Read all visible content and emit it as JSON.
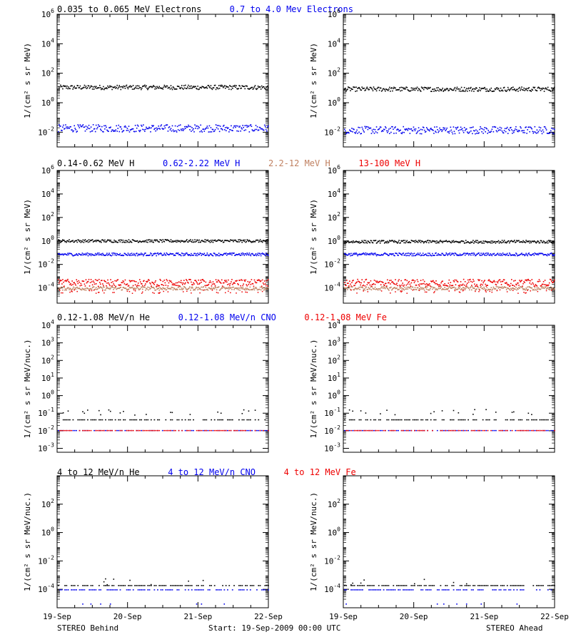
{
  "colors": {
    "black": "#000000",
    "blue": "#0000ee",
    "red": "#ee0000",
    "tan": "#c08060"
  },
  "footer": {
    "left": "STEREO Behind",
    "center": "Start: 19-Sep-2009 00:00 UTC",
    "right": "STEREO Ahead"
  },
  "chart_data": [
    {
      "type": "scatter",
      "panel_row": 1,
      "headers": [
        {
          "text": "0.035 to 0.065 MeV Electrons",
          "color": "black"
        },
        {
          "text": "0.7 to 4.0 Mev Electrons",
          "color": "blue"
        }
      ],
      "ylabel": "1/(cm² s sr MeV)",
      "yscale": "log",
      "ylim": [
        0.001,
        1000000
      ],
      "yticks": [
        {
          "label_base": "10",
          "label_exp": "6"
        },
        {
          "label_base": "10",
          "label_exp": "4"
        },
        {
          "label_base": "10",
          "label_exp": "2"
        },
        {
          "label_base": "10",
          "label_exp": "0"
        },
        {
          "label_base": "10",
          "label_exp": "-2"
        }
      ],
      "ytick_values": [
        1000000,
        10000,
        100,
        1,
        0.01
      ],
      "xticks": [
        "19-Sep",
        "20-Sep",
        "21-Sep",
        "22-Sep"
      ],
      "xlim": [
        0,
        3
      ],
      "spacecraft": [
        "STEREO Behind",
        "STEREO Ahead"
      ],
      "series": [
        {
          "color": "black",
          "behind": {
            "level": 12,
            "spread": 0.15
          },
          "ahead": {
            "level": 9,
            "spread": 0.15
          }
        },
        {
          "color": "blue",
          "behind": {
            "level": 0.02,
            "spread": 0.25
          },
          "ahead": {
            "level": 0.015,
            "spread": 0.25
          }
        }
      ]
    },
    {
      "type": "scatter",
      "panel_row": 2,
      "headers": [
        {
          "text": "0.14-0.62 MeV H",
          "color": "black"
        },
        {
          "text": "0.62-2.22 MeV H",
          "color": "blue"
        },
        {
          "text": "2.2-12 MeV H",
          "color": "tan"
        },
        {
          "text": "13-100 MeV H",
          "color": "red"
        }
      ],
      "ylabel": "1/(cm² s sr MeV)",
      "yscale": "log",
      "ylim": [
        5e-06,
        1000000
      ],
      "yticks": [
        {
          "label_base": "10",
          "label_exp": "6"
        },
        {
          "label_base": "10",
          "label_exp": "4"
        },
        {
          "label_base": "10",
          "label_exp": "2"
        },
        {
          "label_base": "10",
          "label_exp": "0"
        },
        {
          "label_base": "10",
          "label_exp": "-2"
        },
        {
          "label_base": "10",
          "label_exp": "-4"
        }
      ],
      "ytick_values": [
        1000000,
        10000,
        100,
        1,
        0.01,
        0.0001
      ],
      "xticks": [
        "19-Sep",
        "20-Sep",
        "21-Sep",
        "22-Sep"
      ],
      "xlim": [
        0,
        3
      ],
      "series": [
        {
          "color": "black",
          "behind": {
            "level": 1.1,
            "spread": 0.12
          },
          "ahead": {
            "level": 0.95,
            "spread": 0.12
          }
        },
        {
          "color": "blue",
          "behind": {
            "level": 0.08,
            "spread": 0.12
          },
          "ahead": {
            "level": 0.08,
            "spread": 0.12
          }
        },
        {
          "color": "tan",
          "behind": {
            "level": 0.0001,
            "spread": 0.15
          },
          "ahead": {
            "level": 0.0001,
            "spread": 0.15
          }
        },
        {
          "color": "red",
          "behind": {
            "level": 0.0003,
            "spread": 0.3
          },
          "ahead": {
            "level": 0.0003,
            "spread": 0.3
          }
        }
      ]
    },
    {
      "type": "scatter",
      "panel_row": 3,
      "headers": [
        {
          "text": "0.12-1.08 MeV/n He",
          "color": "black"
        },
        {
          "text": "0.12-1.08 MeV/n CNO",
          "color": "blue"
        },
        {
          "text": "0.12-1.08 MeV Fe",
          "color": "red"
        }
      ],
      "ylabel": "1/(cm² s sr MeV/nuc.)",
      "yscale": "log",
      "ylim": [
        0.0006,
        10000
      ],
      "yticks": [
        {
          "label_base": "10",
          "label_exp": "4"
        },
        {
          "label_base": "10",
          "label_exp": "3"
        },
        {
          "label_base": "10",
          "label_exp": "2"
        },
        {
          "label_base": "10",
          "label_exp": "1"
        },
        {
          "label_base": "10",
          "label_exp": "0"
        },
        {
          "label_base": "10",
          "label_exp": "-1"
        },
        {
          "label_base": "10",
          "label_exp": "-2"
        },
        {
          "label_base": "10",
          "label_exp": "-3"
        }
      ],
      "ytick_values": [
        10000,
        1000,
        100,
        10,
        1,
        0.1,
        0.01,
        0.001
      ],
      "xticks": [
        "19-Sep",
        "20-Sep",
        "21-Sep",
        "22-Sep"
      ],
      "xlim": [
        0,
        3
      ],
      "series": [
        {
          "color": "black",
          "behind": {
            "level": 0.045,
            "upper": 0.1
          },
          "ahead": {
            "level": 0.045,
            "upper": 0.1
          }
        },
        {
          "color": "blue",
          "behind": {
            "level": 0.011
          },
          "ahead": {
            "level": 0.011
          }
        },
        {
          "color": "red",
          "behind": {
            "level": 0.011
          },
          "ahead": {
            "level": 0.011
          }
        }
      ]
    },
    {
      "type": "scatter",
      "panel_row": 4,
      "headers": [
        {
          "text": "4 to 12 MeV/n He",
          "color": "black"
        },
        {
          "text": "4 to 12 MeV/n CNO",
          "color": "blue"
        },
        {
          "text": "4 to 12 MeV Fe",
          "color": "red"
        }
      ],
      "ylabel": "1/(cm² s sr MeV/nuc.)",
      "yscale": "log",
      "ylim": [
        5e-06,
        10000
      ],
      "yticks": [
        {
          "label_base": "10",
          "label_exp": "2"
        },
        {
          "label_base": "10",
          "label_exp": "0"
        },
        {
          "label_base": "10",
          "label_exp": "-2"
        },
        {
          "label_base": "10",
          "label_exp": "-4"
        }
      ],
      "ytick_values": [
        100,
        1,
        0.01,
        0.0001
      ],
      "xticks": [
        "19-Sep",
        "20-Sep",
        "21-Sep",
        "22-Sep"
      ],
      "xlim": [
        0,
        3
      ],
      "series": [
        {
          "color": "black",
          "behind": {
            "level": 0.0002
          },
          "ahead": {
            "level": 0.0002
          }
        },
        {
          "color": "blue",
          "behind": {
            "level": 0.0001,
            "lower": 1e-05
          },
          "ahead": {
            "level": 0.0001,
            "lower": 1e-05
          }
        }
      ]
    }
  ]
}
